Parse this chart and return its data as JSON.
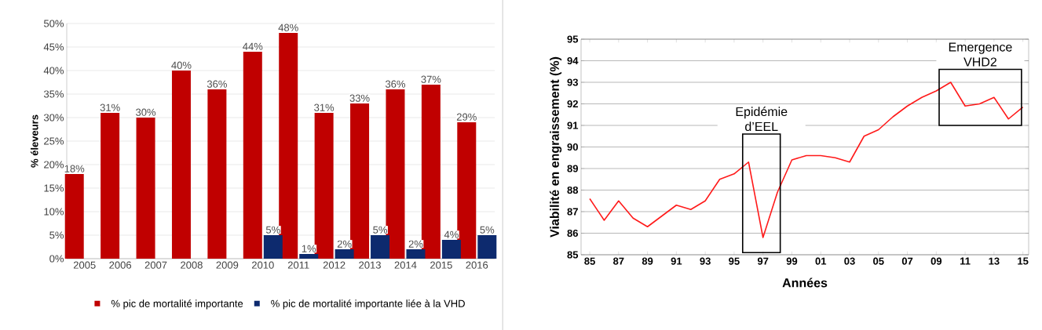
{
  "chart_data": [
    {
      "type": "bar",
      "ylabel": "% éleveurs",
      "categories": [
        "2005",
        "2006",
        "2007",
        "2008",
        "2009",
        "2010",
        "2011",
        "2012",
        "2013",
        "2014",
        "2015",
        "2016"
      ],
      "series": [
        {
          "name": "% pic de mortalité importante",
          "color": "#c00000",
          "values": [
            18,
            31,
            30,
            40,
            36,
            44,
            48,
            31,
            33,
            36,
            37,
            29
          ],
          "value_labels": [
            "18%",
            "31%",
            "30%",
            "40%",
            "36%",
            "44%",
            "48%",
            "31%",
            "33%",
            "36%",
            "37%",
            "29%"
          ]
        },
        {
          "name": "% pic de mortalité importante liée à la VHD",
          "color": "#0d2a6e",
          "values": [
            null,
            null,
            null,
            null,
            null,
            5,
            1,
            2,
            5,
            2,
            4,
            5
          ],
          "value_labels": [
            null,
            null,
            null,
            null,
            null,
            "5%",
            "1%",
            "2%",
            "5%",
            "2%",
            "4%",
            "5%"
          ]
        }
      ],
      "ylim": [
        0,
        50
      ],
      "yticks": [
        {
          "value": 0,
          "label": "0%"
        },
        {
          "value": 5,
          "label": "5%"
        },
        {
          "value": 10,
          "label": "10%"
        },
        {
          "value": 15,
          "label": "15%"
        },
        {
          "value": 20,
          "label": "20%"
        },
        {
          "value": 25,
          "label": "25%"
        },
        {
          "value": 30,
          "label": "30%"
        },
        {
          "value": 35,
          "label": "35%"
        },
        {
          "value": 40,
          "label": "40%"
        },
        {
          "value": 45,
          "label": "45%"
        },
        {
          "value": 50,
          "label": "50%"
        }
      ],
      "grid": "y",
      "legend": "bottom"
    },
    {
      "type": "line",
      "xlabel": "Années",
      "ylabel": "Viabilité en engraissement (%)",
      "x": [
        1985,
        1986,
        1987,
        1988,
        1989,
        1990,
        1991,
        1992,
        1993,
        1994,
        1995,
        1996,
        1997,
        1998,
        1999,
        2000,
        2001,
        2002,
        2003,
        2004,
        2005,
        2006,
        2007,
        2008,
        2009,
        2010,
        2011,
        2012,
        2013,
        2014,
        2015
      ],
      "series": [
        {
          "color": "#ff1a1a",
          "values": [
            87.6,
            86.6,
            87.5,
            86.7,
            86.3,
            86.8,
            87.3,
            87.1,
            87.5,
            88.5,
            88.75,
            89.3,
            85.8,
            87.9,
            89.4,
            89.6,
            89.6,
            89.5,
            89.3,
            90.5,
            90.8,
            91.4,
            91.9,
            92.3,
            92.6,
            93.0,
            91.9,
            92.0,
            92.3,
            91.3,
            91.85
          ]
        }
      ],
      "xlim": [
        1984.4,
        2015.4
      ],
      "xticks": [
        {
          "value": 1985,
          "label": "85"
        },
        {
          "value": 1987,
          "label": "87"
        },
        {
          "value": 1989,
          "label": "89"
        },
        {
          "value": 1991,
          "label": "91"
        },
        {
          "value": 1993,
          "label": "93"
        },
        {
          "value": 1995,
          "label": "95"
        },
        {
          "value": 1997,
          "label": "97"
        },
        {
          "value": 1999,
          "label": "99"
        },
        {
          "value": 2001,
          "label": "01"
        },
        {
          "value": 2003,
          "label": "03"
        },
        {
          "value": 2005,
          "label": "05"
        },
        {
          "value": 2007,
          "label": "07"
        },
        {
          "value": 2009,
          "label": "09"
        },
        {
          "value": 2011,
          "label": "11"
        },
        {
          "value": 2013,
          "label": "13"
        },
        {
          "value": 2015,
          "label": "15"
        }
      ],
      "ylim": [
        85,
        95
      ],
      "yticks": [
        85,
        86,
        87,
        88,
        89,
        90,
        91,
        92,
        93,
        94,
        95
      ],
      "grid": "y",
      "annotations": [
        "Epidémie d’EEL",
        "Emergence VHD2"
      ]
    }
  ]
}
